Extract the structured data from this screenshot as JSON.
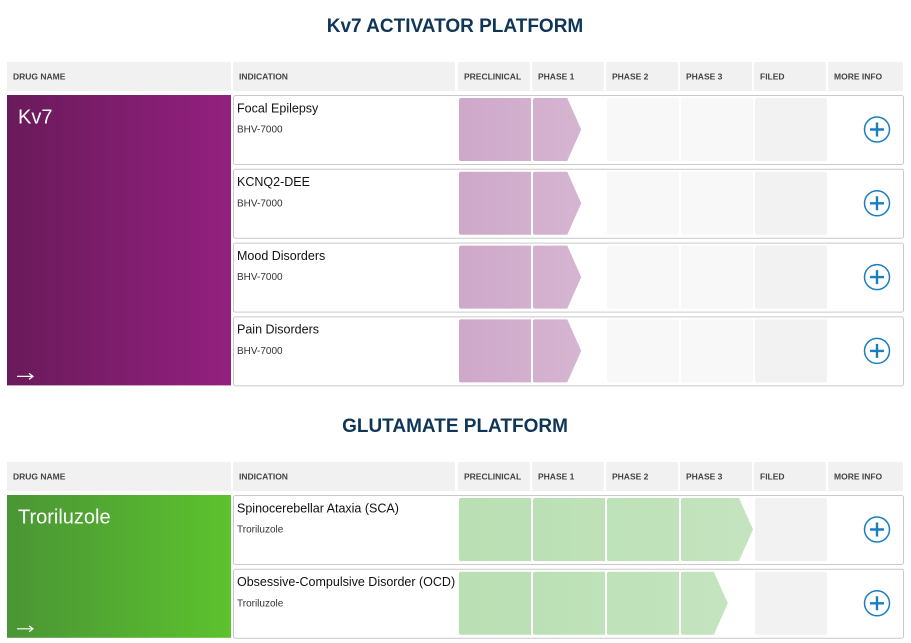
{
  "sections": [
    {
      "title": "Kv7 ACTIVATOR PLATFORM",
      "headers": [
        "DRUG NAME",
        "INDICATION",
        "PRECLINICAL",
        "PHASE 1",
        "PHASE 2",
        "PHASE 3",
        "FILED",
        "MORE INFO"
      ],
      "drug": "Kv7",
      "drug_colors": [
        "#6a1a5a",
        "#93207f"
      ],
      "bar_color": "#cea8c9",
      "rows": [
        {
          "indication": "Focal Epilepsy",
          "compound": "BHV-7000",
          "progress": 1.67
        },
        {
          "indication": "KCNQ2-DEE",
          "compound": "BHV-7000",
          "progress": 1.67
        },
        {
          "indication": "Mood Disorders",
          "compound": "BHV-7000",
          "progress": 1.67
        },
        {
          "indication": "Pain Disorders",
          "compound": "BHV-7000",
          "progress": 1.67
        }
      ]
    },
    {
      "title": "GLUTAMATE PLATFORM",
      "headers": [
        "DRUG NAME",
        "INDICATION",
        "PRECLINICAL",
        "PHASE 1",
        "PHASE 2",
        "PHASE 3",
        "FILED",
        "MORE INFO"
      ],
      "drug": "Troriluzole",
      "drug_colors": [
        "#4a9535",
        "#5cc22d"
      ],
      "bar_color": "#b9dfb3",
      "rows": [
        {
          "indication": "Spinocerebellar Ataxia (SCA)",
          "compound": "Troriluzole",
          "progress": 4
        },
        {
          "indication": "Obsessive-Compulsive Disorder (OCD)",
          "compound": "Troriluzole",
          "progress": 3.65
        }
      ]
    }
  ]
}
